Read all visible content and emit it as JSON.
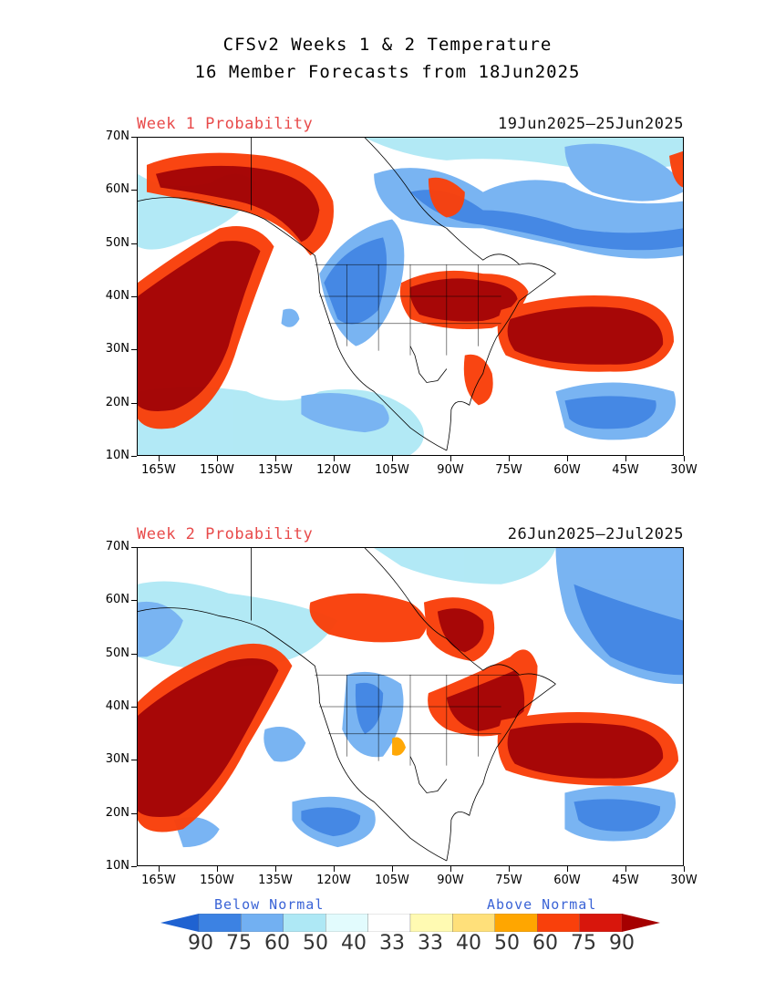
{
  "title_line1": "CFSv2 Weeks 1 & 2 Temperature",
  "title_line2": "16 Member Forecasts from 18Jun2025",
  "panels": [
    {
      "label": "Week 1 Probability",
      "dates": "19Jun2025—25Jun2025"
    },
    {
      "label": "Week 2 Probability",
      "dates": "26Jun2025—2Jul2025"
    }
  ],
  "lat_ticks": [
    "70N",
    "60N",
    "50N",
    "40N",
    "30N",
    "20N",
    "10N"
  ],
  "lon_ticks": [
    "165W",
    "150W",
    "135W",
    "120W",
    "105W",
    "90W",
    "75W",
    "60W",
    "45W",
    "30W"
  ],
  "legend": {
    "below": "Below Normal",
    "above": "Above Normal",
    "values": [
      "90",
      "75",
      "60",
      "50",
      "40",
      "33",
      "33",
      "40",
      "50",
      "60",
      "75",
      "90"
    ],
    "colors": [
      "#1f62d1",
      "#3c82e3",
      "#72b0f2",
      "#aee8f5",
      "#e2fbfd",
      "#ffffff",
      "#fffab2",
      "#ffe07a",
      "#ffa600",
      "#f9400b",
      "#d8160c",
      "#a50000"
    ]
  }
}
